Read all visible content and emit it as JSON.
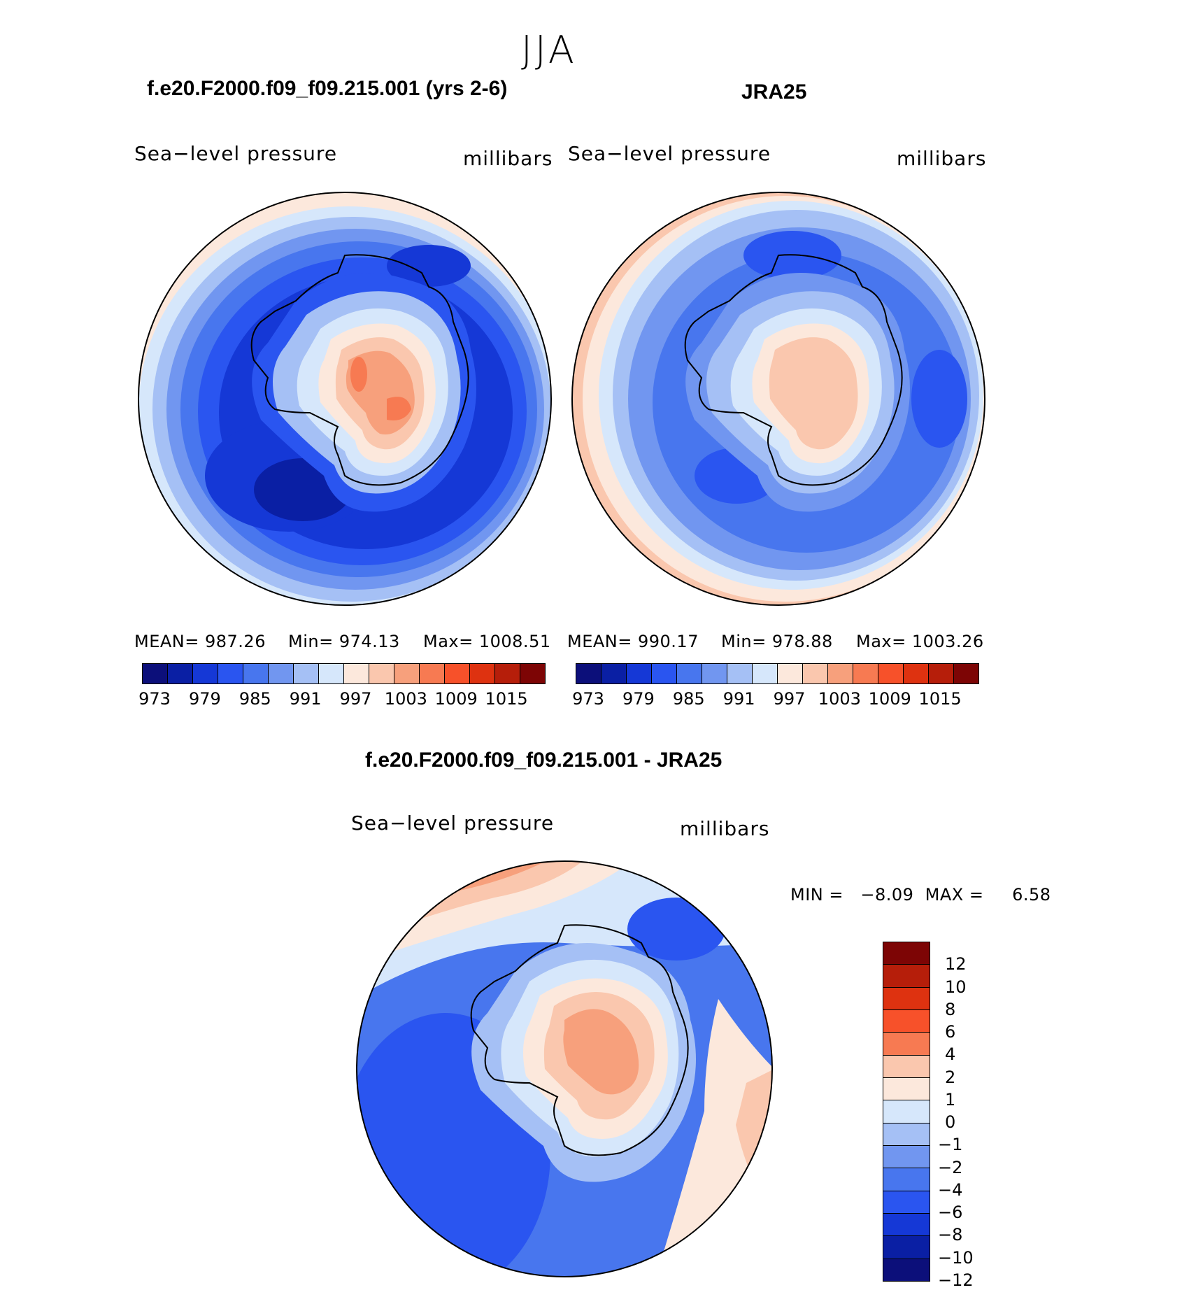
{
  "season": "JJA",
  "panels": [
    {
      "title": "f.e20.F2000.f09_f09.215.001 (yrs 2-6)",
      "variable": "Sea−level pressure",
      "units": "millibars",
      "stats": {
        "mean": "MEAN= 987.26",
        "min": "Min= 974.13",
        "max": "Max= 1008.51"
      }
    },
    {
      "title": "JRA25",
      "variable": "Sea−level pressure",
      "units": "millibars",
      "stats": {
        "mean": "MEAN= 990.17",
        "min": "Min= 978.88",
        "max": "Max= 1003.26"
      }
    },
    {
      "title": "f.e20.F2000.f09_f09.215.001 - JRA25",
      "variable": "Sea−level pressure",
      "units": "millibars",
      "stats": {
        "minmax": "MIN =   −8.09  MAX =     6.58"
      }
    }
  ],
  "colorbar_abs": {
    "colors": [
      "#0c0f7a",
      "#0a1fa4",
      "#1538d6",
      "#2a55f0",
      "#4876ee",
      "#7196f0",
      "#a5c0f5",
      "#d6e7fb",
      "#fce8dc",
      "#fac7ae",
      "#f7a07c",
      "#f77a52",
      "#f7512a",
      "#de3210",
      "#b61e0a",
      "#7d0505"
    ],
    "tick_labels": [
      "973",
      "979",
      "985",
      "991",
      "997",
      "1003",
      "1009",
      "1015"
    ]
  },
  "colorbar_diff": {
    "colors": [
      "#7d0505",
      "#b61e0a",
      "#de3210",
      "#f7512a",
      "#f77a52",
      "#fac7ae",
      "#fce8dc",
      "#d6e7fb",
      "#a5c0f5",
      "#7196f0",
      "#4876ee",
      "#2a55f0",
      "#1538d6",
      "#0a1fa4",
      "#0c0f7a"
    ],
    "tick_labels": [
      "12",
      "10",
      "8",
      "6",
      "4",
      "2",
      "1",
      "0",
      "−1",
      "−2",
      "−4",
      "−6",
      "−8",
      "−10",
      "−12"
    ]
  }
}
